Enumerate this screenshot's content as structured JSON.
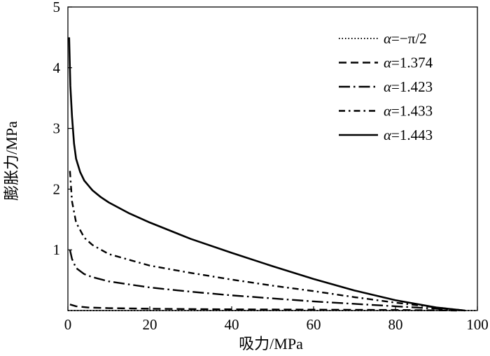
{
  "chart_data": {
    "type": "line",
    "title": "",
    "xlabel": "吸力/MPa",
    "ylabel": "膨胀力/MPa",
    "xlim": [
      0,
      100
    ],
    "ylim": [
      0,
      5
    ],
    "xticks": [
      "0",
      "20",
      "40",
      "60",
      "80",
      "100"
    ],
    "yticks": [
      "1",
      "2",
      "3",
      "4",
      "5"
    ],
    "grid": false,
    "legend_position": "top-right",
    "legend_prefix": "α",
    "series": [
      {
        "name": "=−π/2",
        "style": "dotted",
        "x": [
          0,
          20,
          40,
          60,
          80,
          100
        ],
        "y": [
          0,
          0,
          0,
          0,
          0,
          0
        ]
      },
      {
        "name": "=1.374",
        "style": "dashed",
        "x": [
          0.5,
          2,
          5,
          10,
          20,
          40,
          60,
          80,
          95
        ],
        "y": [
          0.1,
          0.07,
          0.05,
          0.04,
          0.03,
          0.02,
          0.015,
          0.01,
          0.0
        ]
      },
      {
        "name": "=1.423",
        "style": "long-dash-dot",
        "x": [
          0.5,
          1,
          2,
          4,
          6,
          10,
          20,
          30,
          40,
          50,
          60,
          70,
          80,
          90,
          97
        ],
        "y": [
          1.0,
          0.85,
          0.7,
          0.6,
          0.55,
          0.48,
          0.38,
          0.31,
          0.25,
          0.2,
          0.15,
          0.11,
          0.07,
          0.03,
          0.0
        ]
      },
      {
        "name": "=1.433",
        "style": "dash-dot",
        "x": [
          0.5,
          1,
          2,
          4,
          6,
          10,
          20,
          30,
          40,
          50,
          60,
          70,
          80,
          90,
          97
        ],
        "y": [
          2.3,
          1.8,
          1.45,
          1.2,
          1.08,
          0.93,
          0.74,
          0.62,
          0.51,
          0.41,
          0.32,
          0.22,
          0.13,
          0.05,
          0.0
        ]
      },
      {
        "name": "=1.443",
        "style": "solid",
        "x": [
          0.3,
          0.6,
          1,
          1.5,
          2,
          3,
          4,
          6,
          8,
          10,
          15,
          20,
          30,
          40,
          50,
          60,
          70,
          80,
          90,
          97
        ],
        "y": [
          4.5,
          3.7,
          3.2,
          2.75,
          2.5,
          2.28,
          2.14,
          1.98,
          1.87,
          1.78,
          1.6,
          1.45,
          1.18,
          0.95,
          0.73,
          0.52,
          0.33,
          0.17,
          0.05,
          0.0
        ]
      }
    ]
  }
}
